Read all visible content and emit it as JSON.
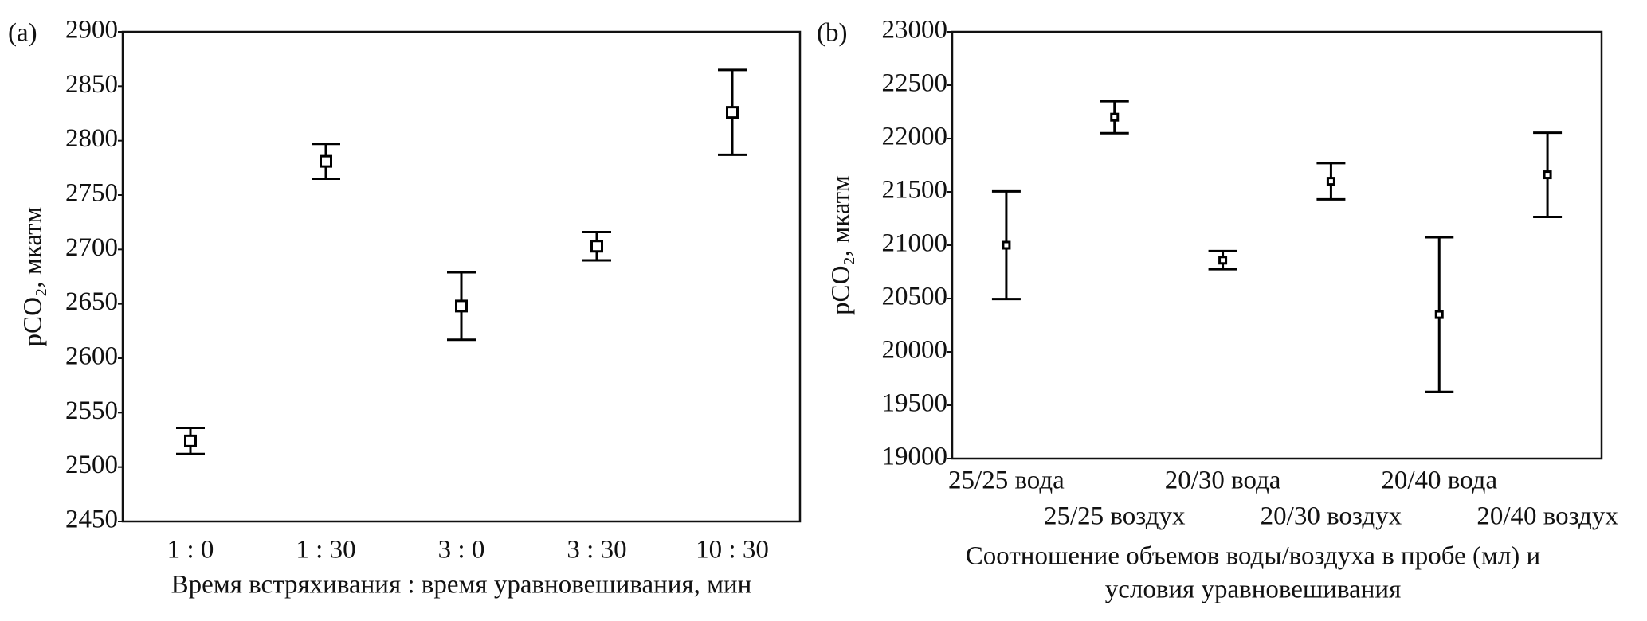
{
  "chart_data": [
    {
      "type": "errorbar",
      "panel_label": "(a)",
      "y_label": "pCO₂, мкатм",
      "x_label": [
        "Время встряхивания : время уравновешивания, мин"
      ],
      "categories": [
        "1 : 0",
        "1 : 30",
        "3 : 0",
        "3 : 30",
        "10 : 30"
      ],
      "values": [
        2524,
        2781,
        2648,
        2703,
        2826
      ],
      "errors": [
        12,
        16,
        31,
        13,
        39
      ],
      "ylim": [
        2450,
        2900
      ],
      "yticks": [
        2450,
        2500,
        2550,
        2600,
        2650,
        2700,
        2750,
        2800,
        2850,
        2900
      ],
      "color": "#000000"
    },
    {
      "type": "errorbar",
      "panel_label": "(b)",
      "y_label": "pCO₂, мкатм",
      "x_label": [
        "Соотношение объемов воды/воздуха в пробе (мл) и",
        "условия уравновешивания"
      ],
      "categories": [
        "25/25 вода",
        "25/25 воздух",
        "20/30 вода",
        "20/30 воздух",
        "20/40 вода",
        "20/40 воздух"
      ],
      "values": [
        21000,
        22200,
        20860,
        21600,
        20350,
        21660
      ],
      "errors": [
        505,
        150,
        85,
        170,
        725,
        395
      ],
      "ylim": [
        19000,
        23000
      ],
      "yticks": [
        19000,
        19500,
        20000,
        20500,
        21000,
        21500,
        22000,
        22500,
        23000
      ],
      "color": "#000000"
    }
  ]
}
